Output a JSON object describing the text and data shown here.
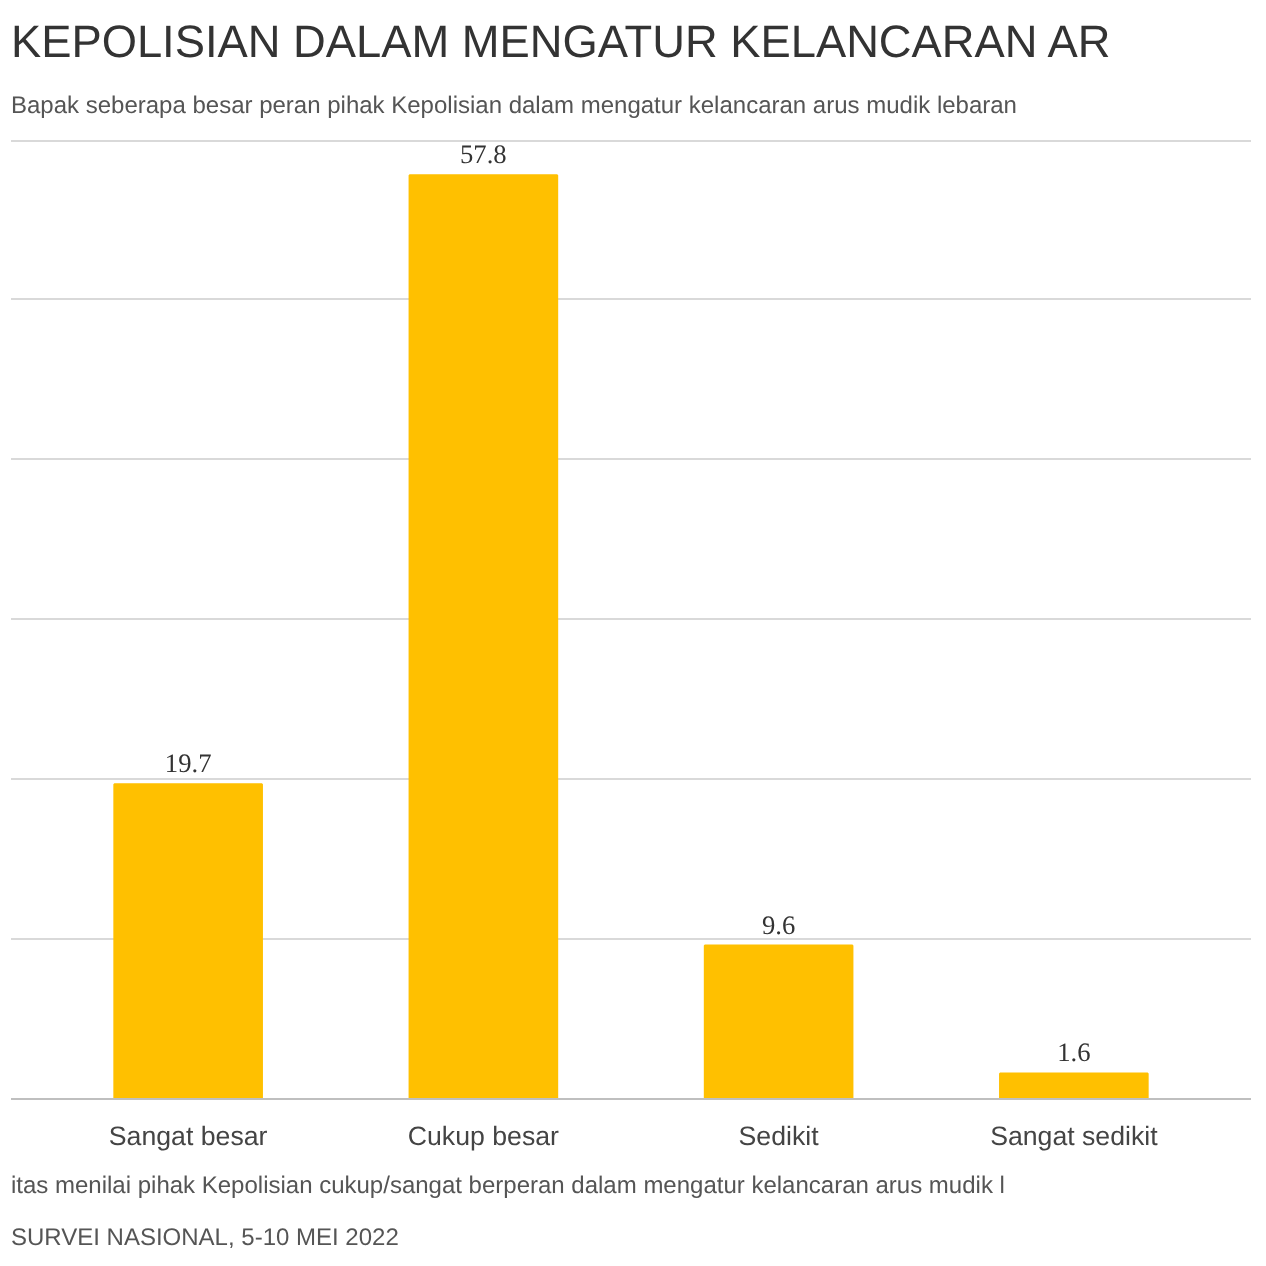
{
  "chart_data": {
    "type": "bar",
    "title": "KEPOLISIAN DALAM MENGATUR KELANCARAN AR",
    "subtitle": "Bapak seberapa besar peran pihak Kepolisian dalam mengatur kelancaran arus mudik lebaran",
    "categories": [
      "Sangat besar",
      "Cukup besar",
      "Sedikit",
      "Sangat sedikit"
    ],
    "values": [
      19.7,
      57.8,
      9.6,
      1.6
    ],
    "color": "#ffc000",
    "data_labels": true,
    "grid": "y",
    "tick_labels": "x",
    "annotations": [
      "itas menilai pihak Kepolisian cukup/sangat berperan dalam mengatur kelancaran arus mudik l",
      "SURVEI NASIONAL, 5-10 MEI 2022"
    ]
  }
}
